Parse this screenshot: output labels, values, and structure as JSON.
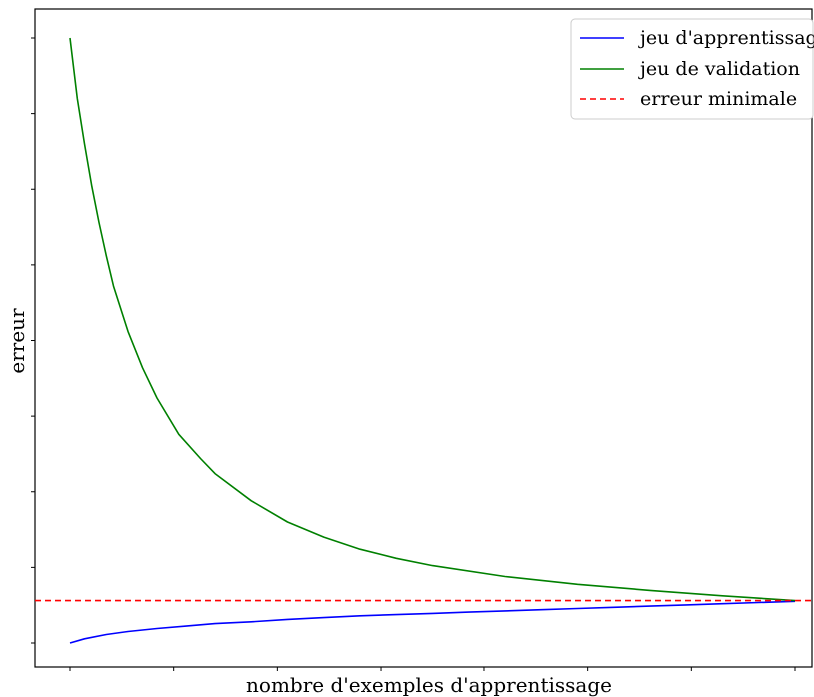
{
  "chart_data": {
    "type": "line",
    "title": "",
    "xlabel": "nombre d'exemples d'apprentissage",
    "ylabel": "erreur",
    "xlim": [
      0,
      1.045
    ],
    "ylim": [
      -0.02,
      1.075
    ],
    "grid": false,
    "legend_position": "top-right",
    "x_ticks": [
      0,
      0.143,
      0.286,
      0.429,
      0.571,
      0.714,
      0.857,
      1.0
    ],
    "y_ticks": [
      0.0,
      0.125,
      0.25,
      0.375,
      0.5,
      0.625,
      0.75,
      0.875,
      1.0
    ],
    "series": [
      {
        "name": "jeu d'apprentissage",
        "color": "#0000ff",
        "style": "solid",
        "x": [
          0.0,
          0.02,
          0.05,
          0.08,
          0.12,
          0.16,
          0.2,
          0.25,
          0.3,
          0.35,
          0.4,
          0.45,
          0.5,
          0.55,
          0.6,
          0.65,
          0.7,
          0.75,
          0.8,
          0.85,
          0.9,
          0.95,
          1.0
        ],
        "y": [
          0.0,
          0.007,
          0.014,
          0.019,
          0.024,
          0.028,
          0.032,
          0.035,
          0.039,
          0.042,
          0.045,
          0.047,
          0.049,
          0.051,
          0.053,
          0.055,
          0.057,
          0.059,
          0.061,
          0.063,
          0.065,
          0.067,
          0.069
        ]
      },
      {
        "name": "jeu de validation",
        "color": "#008000",
        "style": "solid",
        "x": [
          0.0,
          0.01,
          0.02,
          0.03,
          0.04,
          0.05,
          0.06,
          0.08,
          0.1,
          0.12,
          0.15,
          0.18,
          0.2,
          0.25,
          0.3,
          0.35,
          0.4,
          0.45,
          0.5,
          0.6,
          0.7,
          0.8,
          0.9,
          1.0
        ],
        "y": [
          1.0,
          0.9,
          0.825,
          0.755,
          0.695,
          0.64,
          0.59,
          0.515,
          0.455,
          0.405,
          0.345,
          0.305,
          0.28,
          0.235,
          0.2,
          0.175,
          0.155,
          0.14,
          0.128,
          0.11,
          0.097,
          0.087,
          0.078,
          0.07
        ]
      },
      {
        "name": "erreur minimale",
        "color": "#ff0000",
        "style": "dashed",
        "x": [
          -0.05,
          1.05
        ],
        "y": [
          0.07,
          0.07
        ]
      }
    ]
  }
}
